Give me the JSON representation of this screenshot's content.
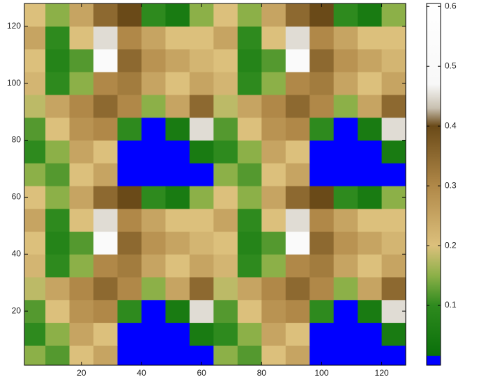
{
  "chart_data": {
    "type": "heatmap",
    "x": [
      4,
      12,
      20,
      28,
      36,
      44,
      52,
      60,
      68,
      76,
      84,
      92,
      100,
      108,
      116,
      124
    ],
    "y": [
      4,
      12,
      20,
      28,
      36,
      44,
      52,
      60,
      68,
      76,
      84,
      92,
      100,
      108,
      116,
      124
    ],
    "z": [
      [
        0.15,
        0.12,
        0.2,
        0.25,
        0.0,
        0.0,
        0.0,
        0.0,
        0.15,
        0.12,
        0.2,
        0.25,
        0.0,
        0.0,
        0.0,
        0.0
      ],
      [
        0.1,
        0.15,
        0.25,
        0.2,
        0.0,
        0.0,
        0.0,
        0.05,
        0.1,
        0.15,
        0.25,
        0.2,
        0.0,
        0.0,
        0.0,
        0.05
      ],
      [
        0.12,
        0.2,
        0.28,
        0.3,
        0.1,
        0.0,
        0.05,
        0.45,
        0.12,
        0.2,
        0.28,
        0.3,
        0.1,
        0.0,
        0.05,
        0.45
      ],
      [
        0.18,
        0.25,
        0.3,
        0.35,
        0.3,
        0.15,
        0.25,
        0.35,
        0.18,
        0.25,
        0.3,
        0.35,
        0.3,
        0.15,
        0.25,
        0.35
      ],
      [
        0.22,
        0.1,
        0.15,
        0.3,
        0.32,
        0.25,
        0.2,
        0.25,
        0.22,
        0.1,
        0.15,
        0.3,
        0.32,
        0.25,
        0.2,
        0.25
      ],
      [
        0.2,
        0.08,
        0.12,
        0.5,
        0.35,
        0.28,
        0.25,
        0.22,
        0.2,
        0.08,
        0.12,
        0.5,
        0.35,
        0.28,
        0.25,
        0.22
      ],
      [
        0.25,
        0.1,
        0.2,
        0.45,
        0.3,
        0.25,
        0.2,
        0.2,
        0.25,
        0.1,
        0.2,
        0.45,
        0.3,
        0.25,
        0.2,
        0.2
      ],
      [
        0.2,
        0.15,
        0.25,
        0.35,
        0.4,
        0.1,
        0.05,
        0.15,
        0.2,
        0.15,
        0.25,
        0.35,
        0.4,
        0.1,
        0.05,
        0.15
      ],
      [
        0.15,
        0.12,
        0.2,
        0.25,
        0.0,
        0.0,
        0.0,
        0.0,
        0.15,
        0.12,
        0.2,
        0.25,
        0.0,
        0.0,
        0.0,
        0.0
      ],
      [
        0.1,
        0.15,
        0.25,
        0.2,
        0.0,
        0.0,
        0.0,
        0.05,
        0.1,
        0.15,
        0.25,
        0.2,
        0.0,
        0.0,
        0.0,
        0.05
      ],
      [
        0.12,
        0.2,
        0.28,
        0.3,
        0.1,
        0.0,
        0.05,
        0.45,
        0.12,
        0.2,
        0.28,
        0.3,
        0.1,
        0.0,
        0.05,
        0.45
      ],
      [
        0.18,
        0.25,
        0.3,
        0.35,
        0.3,
        0.15,
        0.25,
        0.35,
        0.18,
        0.25,
        0.3,
        0.35,
        0.3,
        0.15,
        0.25,
        0.35
      ],
      [
        0.22,
        0.1,
        0.15,
        0.3,
        0.32,
        0.25,
        0.2,
        0.25,
        0.22,
        0.1,
        0.15,
        0.3,
        0.32,
        0.25,
        0.2,
        0.25
      ],
      [
        0.2,
        0.08,
        0.12,
        0.5,
        0.35,
        0.28,
        0.25,
        0.22,
        0.2,
        0.08,
        0.12,
        0.5,
        0.35,
        0.28,
        0.25,
        0.22
      ],
      [
        0.25,
        0.1,
        0.2,
        0.45,
        0.3,
        0.25,
        0.2,
        0.2,
        0.25,
        0.1,
        0.2,
        0.45,
        0.3,
        0.25,
        0.2,
        0.2
      ],
      [
        0.2,
        0.15,
        0.25,
        0.35,
        0.4,
        0.1,
        0.05,
        0.15,
        0.2,
        0.15,
        0.25,
        0.35,
        0.4,
        0.1,
        0.05,
        0.15
      ]
    ],
    "xlim": [
      1,
      128
    ],
    "ylim": [
      1,
      128
    ],
    "xticks": [
      20,
      40,
      60,
      80,
      100,
      120
    ],
    "yticks": [
      20,
      40,
      60,
      80,
      100,
      120
    ],
    "clim": [
      0,
      0.605
    ],
    "cticks": [
      0.1,
      0.2,
      0.3,
      0.4,
      0.5,
      0.6
    ],
    "colormap": [
      [
        0,
        "#0000ff"
      ],
      [
        0.015,
        "#0000ff"
      ],
      [
        0.016,
        "#0a700a"
      ],
      [
        0.1,
        "#2e8a1e"
      ],
      [
        0.15,
        "#8cb048"
      ],
      [
        0.2,
        "#dcc07c"
      ],
      [
        0.3,
        "#b08848"
      ],
      [
        0.4,
        "#6a4a18"
      ],
      [
        0.43,
        "#c8c0b0"
      ],
      [
        0.47,
        "#f8f8f8"
      ],
      [
        0.605,
        "#ffffff"
      ]
    ]
  }
}
